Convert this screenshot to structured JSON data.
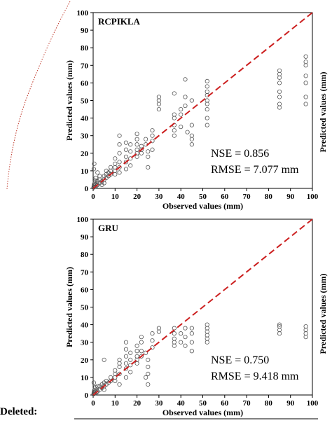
{
  "footer_label": "Deleted:",
  "right_axis_label": "Predicted values (mm)",
  "chart_data": [
    {
      "type": "scatter",
      "title": "RCPIKLA",
      "xlabel": "Observed values (mm)",
      "ylabel": "Predicted values (mm)",
      "xlim": [
        0,
        100
      ],
      "ylim": [
        0,
        100
      ],
      "xticks": [
        0,
        10,
        20,
        30,
        40,
        50,
        60,
        70,
        80,
        90,
        100
      ],
      "yticks": [
        0,
        10,
        20,
        30,
        40,
        50,
        60,
        70,
        80,
        90,
        100
      ],
      "reference_line": {
        "from": [
          0,
          0
        ],
        "to": [
          100,
          100
        ],
        "style": "dashed",
        "color": "#cc1f1f"
      },
      "annotations": [
        "NSE = 0.856",
        "RMSE = 7.077 mm"
      ],
      "point_color": "#555555",
      "points": [
        [
          0.2,
          0.5
        ],
        [
          0.3,
          1.5
        ],
        [
          0.5,
          2.5
        ],
        [
          0.5,
          0.8
        ],
        [
          0.8,
          3.5
        ],
        [
          1,
          1
        ],
        [
          1,
          4.5
        ],
        [
          1,
          2
        ],
        [
          1.2,
          6
        ],
        [
          1.5,
          1.5
        ],
        [
          1.5,
          3
        ],
        [
          2,
          2
        ],
        [
          2,
          9
        ],
        [
          2,
          4
        ],
        [
          0.3,
          11
        ],
        [
          0.5,
          14
        ],
        [
          3,
          3
        ],
        [
          3,
          5
        ],
        [
          3,
          7
        ],
        [
          4,
          4
        ],
        [
          4,
          2
        ],
        [
          5,
          5
        ],
        [
          5,
          7
        ],
        [
          5,
          3
        ],
        [
          6,
          6
        ],
        [
          6,
          8
        ],
        [
          6,
          10
        ],
        [
          7,
          7
        ],
        [
          7,
          9
        ],
        [
          8,
          8
        ],
        [
          8,
          10
        ],
        [
          8,
          12
        ],
        [
          10,
          10
        ],
        [
          10,
          12
        ],
        [
          10,
          8
        ],
        [
          10,
          14
        ],
        [
          10,
          17
        ],
        [
          12,
          12
        ],
        [
          12,
          15
        ],
        [
          12,
          20
        ],
        [
          12,
          25
        ],
        [
          12,
          30
        ],
        [
          12,
          9
        ],
        [
          15,
          15
        ],
        [
          15,
          18
        ],
        [
          15,
          22
        ],
        [
          15,
          26
        ],
        [
          15,
          11
        ],
        [
          17,
          17
        ],
        [
          17,
          21
        ],
        [
          17,
          25
        ],
        [
          17,
          13
        ],
        [
          20,
          20
        ],
        [
          20,
          22
        ],
        [
          20,
          25
        ],
        [
          20,
          18
        ],
        [
          20,
          28
        ],
        [
          20,
          31
        ],
        [
          22,
          22
        ],
        [
          22,
          24
        ],
        [
          22,
          20
        ],
        [
          24,
          25
        ],
        [
          24,
          28
        ],
        [
          25,
          12
        ],
        [
          25,
          18
        ],
        [
          25,
          21
        ],
        [
          27,
          27
        ],
        [
          27,
          30
        ],
        [
          27,
          33
        ],
        [
          27,
          22
        ],
        [
          30,
          45
        ],
        [
          30,
          48
        ],
        [
          30,
          50
        ],
        [
          30,
          52
        ],
        [
          37,
          33
        ],
        [
          37,
          36
        ],
        [
          37,
          40
        ],
        [
          37,
          42
        ],
        [
          37,
          30
        ],
        [
          37,
          54
        ],
        [
          40,
          35
        ],
        [
          40,
          42
        ],
        [
          40,
          45
        ],
        [
          42,
          47
        ],
        [
          42,
          52
        ],
        [
          42,
          62
        ],
        [
          43,
          32
        ],
        [
          45,
          25
        ],
        [
          45,
          28
        ],
        [
          45,
          30
        ],
        [
          45,
          36
        ],
        [
          45,
          50
        ],
        [
          52,
          36
        ],
        [
          52,
          40
        ],
        [
          52,
          45
        ],
        [
          52,
          48
        ],
        [
          52,
          50
        ],
        [
          52,
          53
        ],
        [
          52,
          55
        ],
        [
          52,
          58
        ],
        [
          52,
          61
        ],
        [
          85,
          46
        ],
        [
          85,
          48
        ],
        [
          85,
          52
        ],
        [
          85,
          55
        ],
        [
          85,
          60
        ],
        [
          85,
          63
        ],
        [
          85,
          65
        ],
        [
          85,
          67
        ],
        [
          97,
          48
        ],
        [
          97,
          52
        ],
        [
          97,
          60
        ],
        [
          97,
          64
        ],
        [
          97,
          70
        ],
        [
          97,
          72
        ],
        [
          97,
          75
        ]
      ]
    },
    {
      "type": "scatter",
      "title": "GRU",
      "xlabel": "Observed values (mm)",
      "ylabel": "Predicted values (mm)",
      "xlim": [
        0,
        100
      ],
      "ylim": [
        0,
        100
      ],
      "xticks": [
        0,
        10,
        20,
        30,
        40,
        50,
        60,
        70,
        80,
        90,
        100
      ],
      "yticks": [
        0,
        10,
        20,
        30,
        40,
        50,
        60,
        70,
        80,
        90,
        100
      ],
      "reference_line": {
        "from": [
          0,
          0
        ],
        "to": [
          100,
          100
        ],
        "style": "dashed",
        "color": "#cc1f1f"
      },
      "annotations": [
        "NSE = 0.750",
        "RMSE = 9.418 mm"
      ],
      "point_color": "#555555",
      "points": [
        [
          0.2,
          0.5
        ],
        [
          0.3,
          1.5
        ],
        [
          0.5,
          2.5
        ],
        [
          0.5,
          0.8
        ],
        [
          0.8,
          3.5
        ],
        [
          1,
          1
        ],
        [
          1,
          4.5
        ],
        [
          1,
          2
        ],
        [
          1.5,
          1.5
        ],
        [
          1.5,
          3
        ],
        [
          2,
          2
        ],
        [
          2,
          5
        ],
        [
          0.3,
          7
        ],
        [
          3,
          3
        ],
        [
          3,
          5
        ],
        [
          4,
          4
        ],
        [
          4,
          6
        ],
        [
          5,
          5
        ],
        [
          5,
          7
        ],
        [
          5,
          3
        ],
        [
          5,
          20
        ],
        [
          6,
          6
        ],
        [
          6,
          8
        ],
        [
          7,
          7
        ],
        [
          8,
          8
        ],
        [
          8,
          10
        ],
        [
          10,
          10
        ],
        [
          10,
          12
        ],
        [
          10,
          8
        ],
        [
          10,
          14
        ],
        [
          12,
          12
        ],
        [
          12,
          16
        ],
        [
          12,
          18
        ],
        [
          12,
          20
        ],
        [
          12,
          6
        ],
        [
          15,
          15
        ],
        [
          15,
          18
        ],
        [
          15,
          22
        ],
        [
          15,
          26
        ],
        [
          15,
          30
        ],
        [
          15,
          10
        ],
        [
          17,
          17
        ],
        [
          17,
          20
        ],
        [
          17,
          24
        ],
        [
          17,
          13
        ],
        [
          20,
          20
        ],
        [
          20,
          22
        ],
        [
          20,
          25
        ],
        [
          20,
          18
        ],
        [
          20,
          28
        ],
        [
          22,
          22
        ],
        [
          22,
          25
        ],
        [
          22,
          30
        ],
        [
          22,
          33
        ],
        [
          24,
          24
        ],
        [
          24,
          10
        ],
        [
          25,
          12
        ],
        [
          25,
          16
        ],
        [
          25,
          20
        ],
        [
          25,
          6
        ],
        [
          27,
          27
        ],
        [
          27,
          31
        ],
        [
          27,
          35
        ],
        [
          30,
          36
        ],
        [
          30,
          38
        ],
        [
          37,
          28
        ],
        [
          37,
          30
        ],
        [
          37,
          32
        ],
        [
          37,
          35
        ],
        [
          37,
          38
        ],
        [
          40,
          30
        ],
        [
          40,
          35
        ],
        [
          42,
          28
        ],
        [
          42,
          33
        ],
        [
          42,
          38
        ],
        [
          45,
          25
        ],
        [
          45,
          30
        ],
        [
          45,
          35
        ],
        [
          45,
          38
        ],
        [
          52,
          30
        ],
        [
          52,
          32
        ],
        [
          52,
          34
        ],
        [
          52,
          36
        ],
        [
          52,
          38
        ],
        [
          52,
          40
        ],
        [
          85,
          35
        ],
        [
          85,
          37
        ],
        [
          85,
          39
        ],
        [
          85,
          40
        ],
        [
          97,
          33
        ],
        [
          97,
          35
        ],
        [
          97,
          37
        ],
        [
          97,
          39
        ]
      ]
    }
  ]
}
